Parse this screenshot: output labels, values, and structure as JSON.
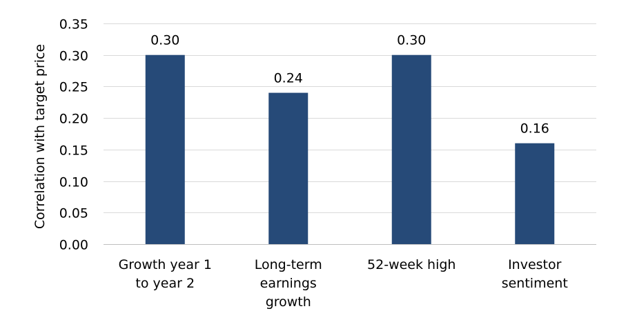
{
  "chart_data": {
    "type": "bar",
    "title": "",
    "xlabel": "",
    "ylabel": "Correlation with target price",
    "categories": [
      [
        "Growth year 1",
        "to year 2"
      ],
      [
        "Long-term",
        "earnings",
        "growth"
      ],
      [
        "52-week high"
      ],
      [
        "Investor",
        "sentiment"
      ]
    ],
    "values": [
      0.3,
      0.24,
      0.3,
      0.16
    ],
    "data_labels": [
      "0.30",
      "0.24",
      "0.30",
      "0.16"
    ],
    "ylim": [
      0,
      0.35
    ],
    "yticks": [
      "0.00",
      "0.05",
      "0.10",
      "0.15",
      "0.20",
      "0.25",
      "0.30",
      "0.35"
    ],
    "grid": true,
    "legend": "none",
    "colors": {
      "bar": "#264a78",
      "grid": "#d9d9d9",
      "axis": "#bfbfbf"
    }
  }
}
